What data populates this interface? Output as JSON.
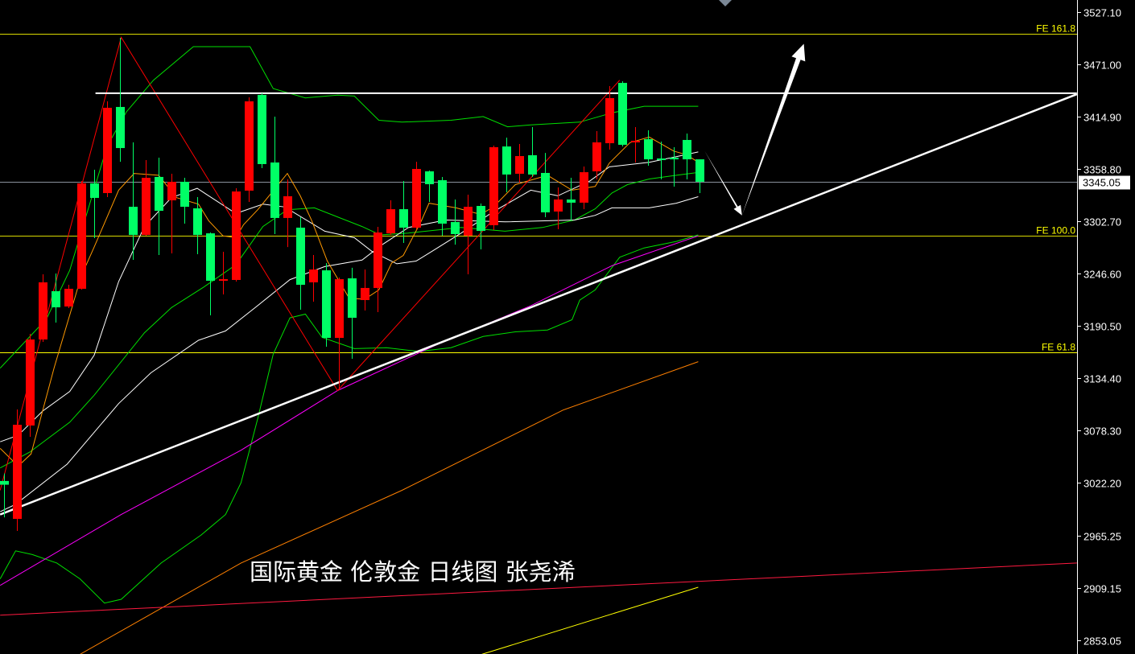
{
  "chart_data": {
    "type": "candlestick",
    "title": "",
    "xlabel": "",
    "ylabel": "",
    "ylim": [
      2843.0,
      3540.0
    ],
    "grid": false,
    "background": "#000000",
    "up_color": "#ff0000",
    "down_color": "#00ff66",
    "y_ticks": [
      "3527.10",
      "3471.00",
      "3414.90",
      "3358.80",
      "3302.70",
      "3246.60",
      "3190.50",
      "3134.40",
      "3078.30",
      "3022.20",
      "2965.25",
      "2909.15",
      "2853.05"
    ],
    "current_price": "3345.05",
    "candles": [
      {
        "o": 3024,
        "h": 3032,
        "l": 2985,
        "c": 3020
      },
      {
        "o": 2983.3,
        "h": 3100.7,
        "l": 2970.4,
        "c": 3084.3
      },
      {
        "o": 3083.5,
        "h": 3181.9,
        "l": 3071.4,
        "c": 3175.8
      },
      {
        "o": 3175.8,
        "h": 3245.7,
        "l": 3173.2,
        "c": 3237.1
      },
      {
        "o": 3227.6,
        "h": 3246.6,
        "l": 3193.9,
        "c": 3210.3
      },
      {
        "o": 3211.2,
        "h": 3234.5,
        "l": 3209.5,
        "c": 3230.2
      },
      {
        "o": 3230.2,
        "h": 3345.9,
        "l": 3229.3,
        "c": 3343.3
      },
      {
        "o": 3343.3,
        "h": 3357.9,
        "l": 3284.6,
        "c": 3327.7
      },
      {
        "o": 3332.9,
        "h": 3431.3,
        "l": 3328.6,
        "c": 3424.4
      },
      {
        "o": 3425.3,
        "h": 3499.5,
        "l": 3366.5,
        "c": 3381.2
      },
      {
        "o": 3318.2,
        "h": 3387.3,
        "l": 3261.3,
        "c": 3288.0
      },
      {
        "o": 3288.0,
        "h": 3368.3,
        "l": 3287.2,
        "c": 3349.3
      },
      {
        "o": 3350.2,
        "h": 3370.9,
        "l": 3266.4,
        "c": 3313.9
      },
      {
        "o": 3325.1,
        "h": 3353.6,
        "l": 3268.2,
        "c": 3345.0
      },
      {
        "o": 3345.0,
        "h": 3349.3,
        "l": 3300.1,
        "c": 3318.2
      },
      {
        "o": 3316.5,
        "h": 3328.6,
        "l": 3267.3,
        "c": 3288.0
      },
      {
        "o": 3289.7,
        "h": 3290.6,
        "l": 3201.7,
        "c": 3238.8
      },
      {
        "o": 3238.8,
        "h": 3269.9,
        "l": 3224.2,
        "c": 3240.5
      },
      {
        "o": 3239.7,
        "h": 3338.1,
        "l": 3238.0,
        "c": 3334.6
      },
      {
        "o": 3335.5,
        "h": 3435.6,
        "l": 3323.4,
        "c": 3431.3
      },
      {
        "o": 3438.2,
        "h": 3439.9,
        "l": 3359.7,
        "c": 3364.0
      },
      {
        "o": 3365.7,
        "h": 3414.9,
        "l": 3288.9,
        "c": 3306.2
      },
      {
        "o": 3306.2,
        "h": 3347.6,
        "l": 3275.0,
        "c": 3329.5
      },
      {
        "o": 3295.8,
        "h": 3307.0,
        "l": 3207.8,
        "c": 3234.5
      },
      {
        "o": 3237.1,
        "h": 3266.4,
        "l": 3216.4,
        "c": 3250.9
      },
      {
        "o": 3250.0,
        "h": 3257.8,
        "l": 3168.1,
        "c": 3177.5
      },
      {
        "o": 3177.5,
        "h": 3242.3,
        "l": 3121.4,
        "c": 3240.5
      },
      {
        "o": 3241.4,
        "h": 3252.7,
        "l": 3155.1,
        "c": 3199.1
      },
      {
        "o": 3218.1,
        "h": 3250.9,
        "l": 3206.9,
        "c": 3231.1
      },
      {
        "o": 3231.1,
        "h": 3296.7,
        "l": 3205.2,
        "c": 3290.6
      },
      {
        "o": 3289.7,
        "h": 3325.1,
        "l": 3288.0,
        "c": 3315.6
      },
      {
        "o": 3315.6,
        "h": 3345.9,
        "l": 3279.4,
        "c": 3295.8
      },
      {
        "o": 3295.8,
        "h": 3366.5,
        "l": 3294.1,
        "c": 3358.8
      },
      {
        "o": 3356.2,
        "h": 3357.1,
        "l": 3323.4,
        "c": 3342.4
      },
      {
        "o": 3346.7,
        "h": 3350.2,
        "l": 3287.2,
        "c": 3300.1
      },
      {
        "o": 3301.8,
        "h": 3326.0,
        "l": 3277.6,
        "c": 3288.9
      },
      {
        "o": 3287.2,
        "h": 3331.2,
        "l": 3245.7,
        "c": 3318.2
      },
      {
        "o": 3319.1,
        "h": 3321.7,
        "l": 3272.5,
        "c": 3292.3
      },
      {
        "o": 3298.4,
        "h": 3383.8,
        "l": 3293.2,
        "c": 3382.1
      },
      {
        "o": 3382.9,
        "h": 3392.4,
        "l": 3333.8,
        "c": 3352.8
      },
      {
        "o": 3353.6,
        "h": 3385.6,
        "l": 3344.1,
        "c": 3372.6
      },
      {
        "o": 3373.5,
        "h": 3403.7,
        "l": 3350.2,
        "c": 3352.8
      },
      {
        "o": 3354.5,
        "h": 3376.0,
        "l": 3307.0,
        "c": 3312.2
      },
      {
        "o": 3313.1,
        "h": 3338.9,
        "l": 3294.1,
        "c": 3326.0
      },
      {
        "o": 3326.0,
        "h": 3349.3,
        "l": 3303.5,
        "c": 3322.6
      },
      {
        "o": 3322.6,
        "h": 3361.4,
        "l": 3315.6,
        "c": 3355.3
      },
      {
        "o": 3356.2,
        "h": 3399.4,
        "l": 3347.6,
        "c": 3387.3
      },
      {
        "o": 3386.4,
        "h": 3447.7,
        "l": 3379.5,
        "c": 3434.8
      },
      {
        "o": 3451.1,
        "h": 3452.9,
        "l": 3382.9,
        "c": 3384.7
      },
      {
        "o": 3387.3,
        "h": 3403.7,
        "l": 3365.7,
        "c": 3389.0
      },
      {
        "o": 3390.7,
        "h": 3400.2,
        "l": 3362.3,
        "c": 3369.1
      },
      {
        "o": 3370.0,
        "h": 3388.1,
        "l": 3347.6,
        "c": 3368.3
      },
      {
        "o": 3370.9,
        "h": 3382.1,
        "l": 3339.8,
        "c": 3369.1
      },
      {
        "o": 3389.9,
        "h": 3396.8,
        "l": 3347.6,
        "c": 3369.1
      },
      {
        "o": 3369.1,
        "h": 3369.1,
        "l": 3332.9,
        "c": 3345.05
      }
    ],
    "overlays": [
      {
        "id": "bollinger-upper",
        "color": "#00e000",
        "width": 1,
        "points": [
          [
            -0.3,
            3145
          ],
          [
            3.3,
            3198
          ],
          [
            5.1,
            3250
          ],
          [
            8,
            3383
          ],
          [
            9.5,
            3420
          ],
          [
            11.6,
            3454
          ],
          [
            14.7,
            3490
          ],
          [
            19.1,
            3490
          ],
          [
            20.9,
            3445
          ],
          [
            23.4,
            3435
          ],
          [
            25.9,
            3438
          ],
          [
            27.2,
            3437
          ],
          [
            29.1,
            3411
          ],
          [
            30.9,
            3409
          ],
          [
            34.7,
            3411
          ],
          [
            37.2,
            3415
          ],
          [
            39.1,
            3404
          ],
          [
            40.9,
            3406
          ],
          [
            44.7,
            3409
          ],
          [
            47.2,
            3419
          ],
          [
            49.7,
            3426
          ],
          [
            53.9,
            3426
          ]
        ]
      },
      {
        "id": "bollinger-middle",
        "color": "#00e000",
        "width": 1,
        "points": [
          [
            -0.3,
            3038
          ],
          [
            2,
            3055
          ],
          [
            5.1,
            3087
          ],
          [
            7,
            3116
          ],
          [
            10.9,
            3183
          ],
          [
            13,
            3210
          ],
          [
            15.5,
            3232
          ],
          [
            18,
            3256
          ],
          [
            20.1,
            3297
          ],
          [
            22,
            3315
          ],
          [
            24.1,
            3317
          ],
          [
            27.8,
            3297
          ],
          [
            29.2,
            3288
          ],
          [
            31.4,
            3290
          ],
          [
            35.5,
            3296
          ],
          [
            38.9,
            3292
          ],
          [
            41.8,
            3296
          ],
          [
            44.3,
            3304
          ],
          [
            45.9,
            3316
          ],
          [
            47.2,
            3333
          ],
          [
            48.4,
            3342
          ],
          [
            50.1,
            3348
          ],
          [
            52.2,
            3352
          ],
          [
            53.9,
            3355
          ]
        ]
      },
      {
        "id": "bollinger-lower",
        "color": "#00e000",
        "width": 1,
        "points": [
          [
            -0.3,
            2919
          ],
          [
            0.9,
            2949
          ],
          [
            2.2,
            2945
          ],
          [
            4.1,
            2936
          ],
          [
            5.9,
            2919
          ],
          [
            7.8,
            2893
          ],
          [
            9.1,
            2897
          ],
          [
            12.2,
            2936
          ],
          [
            15.3,
            2966
          ],
          [
            17.2,
            2988
          ],
          [
            18.4,
            3022
          ],
          [
            19.7,
            3091
          ],
          [
            20.9,
            3160
          ],
          [
            22.2,
            3199
          ],
          [
            23.4,
            3203
          ],
          [
            24.7,
            3178
          ],
          [
            27.2,
            3166
          ],
          [
            29.7,
            3167
          ],
          [
            32.2,
            3163
          ],
          [
            34.7,
            3167
          ],
          [
            37.2,
            3179
          ],
          [
            39.7,
            3184
          ],
          [
            42.2,
            3186
          ],
          [
            44.1,
            3197
          ],
          [
            44.7,
            3218
          ],
          [
            45.9,
            3229
          ],
          [
            47.8,
            3264
          ],
          [
            49.7,
            3274
          ],
          [
            52.2,
            3281
          ],
          [
            53.9,
            3288
          ]
        ]
      },
      {
        "id": "ma-white-fast",
        "color": "#ffffff",
        "width": 1,
        "points": [
          [
            -0.3,
            3066
          ],
          [
            1.1,
            3073
          ],
          [
            3,
            3099
          ],
          [
            5.1,
            3120
          ],
          [
            7,
            3159
          ],
          [
            8.9,
            3238
          ],
          [
            10.9,
            3297
          ],
          [
            13,
            3328
          ],
          [
            15,
            3338
          ],
          [
            18,
            3311
          ],
          [
            20.1,
            3321
          ],
          [
            21.8,
            3318
          ],
          [
            24.9,
            3292
          ],
          [
            27.2,
            3285
          ],
          [
            28.6,
            3270
          ],
          [
            30.5,
            3257
          ],
          [
            32,
            3260
          ],
          [
            33.3,
            3271
          ],
          [
            35.5,
            3290
          ],
          [
            38,
            3313
          ],
          [
            40.9,
            3336
          ],
          [
            43,
            3330
          ],
          [
            45.5,
            3346
          ],
          [
            47,
            3361
          ],
          [
            50.1,
            3366
          ],
          [
            52.2,
            3372
          ],
          [
            53.9,
            3377
          ]
        ]
      },
      {
        "id": "ma-white-slow",
        "color": "#ffffff",
        "width": 1,
        "points": [
          [
            -0.3,
            2991
          ],
          [
            0.9,
            2999
          ],
          [
            4.9,
            3042
          ],
          [
            8.9,
            3107
          ],
          [
            11.4,
            3140
          ],
          [
            15.1,
            3175
          ],
          [
            17.2,
            3185
          ],
          [
            19.5,
            3210
          ],
          [
            22.2,
            3240
          ],
          [
            24.9,
            3254
          ],
          [
            27.8,
            3261
          ],
          [
            29.3,
            3277
          ],
          [
            31.4,
            3296
          ],
          [
            34.3,
            3304
          ],
          [
            38.9,
            3302
          ],
          [
            44.3,
            3304
          ],
          [
            45.9,
            3309
          ],
          [
            47.2,
            3317
          ],
          [
            50.1,
            3317
          ],
          [
            52.2,
            3322
          ],
          [
            53.9,
            3329
          ]
        ]
      },
      {
        "id": "ma-orange-fast",
        "color": "#ff9900",
        "width": 1,
        "points": [
          [
            -0.3,
            3059
          ],
          [
            1.1,
            3040
          ],
          [
            2.1,
            3053
          ],
          [
            3.9,
            3146
          ],
          [
            6,
            3244
          ],
          [
            7,
            3275
          ],
          [
            8.9,
            3336
          ],
          [
            10.1,
            3354
          ],
          [
            12,
            3352
          ],
          [
            13.4,
            3328
          ],
          [
            15.1,
            3321
          ],
          [
            15.9,
            3303
          ],
          [
            17,
            3287
          ],
          [
            18,
            3285
          ],
          [
            18.6,
            3299
          ],
          [
            19.7,
            3315
          ],
          [
            22,
            3354
          ],
          [
            23,
            3330
          ],
          [
            23.9,
            3303
          ],
          [
            25.1,
            3260
          ],
          [
            26.8,
            3220
          ],
          [
            28,
            3219
          ],
          [
            29.1,
            3229
          ],
          [
            30.1,
            3258
          ],
          [
            31,
            3266
          ],
          [
            32.4,
            3303
          ],
          [
            33,
            3322
          ],
          [
            35.1,
            3317
          ],
          [
            37,
            3310
          ],
          [
            38,
            3318
          ],
          [
            39.7,
            3342
          ],
          [
            42.2,
            3352
          ],
          [
            44.1,
            3336
          ],
          [
            45.9,
            3340
          ],
          [
            47,
            3365
          ],
          [
            48.6,
            3387
          ],
          [
            50.1,
            3393
          ],
          [
            52,
            3378
          ],
          [
            53,
            3374
          ],
          [
            53.9,
            3366
          ]
        ]
      },
      {
        "id": "ma-magenta",
        "color": "#ff00ff",
        "width": 1,
        "points": [
          [
            -0.3,
            2912
          ],
          [
            9.1,
            2988
          ],
          [
            18.4,
            3057
          ],
          [
            25.9,
            3121
          ],
          [
            33.4,
            3169
          ],
          [
            40.9,
            3212
          ],
          [
            47.2,
            3255
          ],
          [
            53.9,
            3287
          ]
        ]
      },
      {
        "id": "ma-orange-long",
        "color": "#ff8000",
        "width": 1,
        "points": [
          [
            5.9,
            2838
          ],
          [
            18.4,
            2936
          ],
          [
            30.9,
            3014
          ],
          [
            43.4,
            3100
          ],
          [
            53.9,
            3152
          ]
        ]
      },
      {
        "id": "ma-yellow-long",
        "color": "#ffff00",
        "width": 1,
        "points": [
          [
            37.1,
            2838
          ],
          [
            53.9,
            2910
          ]
        ]
      },
      {
        "id": "zigzag",
        "color": "#ff0000",
        "width": 1,
        "points": [
          [
            -0.3,
            3014
          ],
          [
            9.1,
            3500
          ],
          [
            25.9,
            3121
          ],
          [
            47.8,
            3454
          ]
        ]
      },
      {
        "id": "red-channel-line",
        "color": "#ff1a40",
        "width": 1,
        "points": [
          [
            -0.3,
            2880
          ],
          [
            83.3,
            2936
          ]
        ]
      },
      {
        "id": "support-trendline",
        "color": "#ffffff",
        "width": 2.5,
        "points": [
          [
            -0.3,
            2988
          ],
          [
            83.3,
            3439
          ]
        ]
      },
      {
        "id": "resistance-line",
        "color": "#ffffff",
        "width": 2,
        "points": [
          [
            7.1,
            3440
          ],
          [
            83.3,
            3440
          ]
        ]
      }
    ],
    "arrows": [
      {
        "id": "arrow-down",
        "color": "#ffffff",
        "from": [
          54.4,
          3378
        ],
        "to": [
          57.3,
          3309
        ]
      },
      {
        "id": "arrow-up",
        "color": "#ffffff",
        "from": [
          57.3,
          3309
        ],
        "to": [
          62.1,
          3493
        ]
      }
    ],
    "fib_levels": [
      {
        "label": "FE 161.8",
        "price": 3503.8,
        "color": "#ffff00"
      },
      {
        "label": "FE 100.0",
        "price": 3287.2,
        "color": "#ffff00"
      },
      {
        "label": "FE 61.8",
        "price": 3162.0,
        "color": "#ffff00"
      }
    ],
    "annotation": "国际黄金 伦敦金 日线图 张尧浠"
  }
}
